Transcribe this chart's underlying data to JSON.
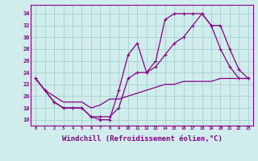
{
  "bg_color": "#d0ecec",
  "grid_color": "#a8d4d4",
  "line_color": "#880088",
  "xlabel": "Windchill (Refroidissement éolien,°C)",
  "xlabel_fontsize": 6.5,
  "ytick_values": [
    16,
    18,
    20,
    22,
    24,
    26,
    28,
    30,
    32,
    34
  ],
  "ylim": [
    15.0,
    35.5
  ],
  "xlim": [
    -0.5,
    23.5
  ],
  "line1_x": [
    0,
    1,
    2,
    3,
    4,
    5,
    6,
    7,
    8,
    9,
    10,
    11,
    12,
    13,
    14,
    15,
    16,
    17,
    18,
    19,
    20,
    21,
    22,
    23
  ],
  "line1_y": [
    23,
    21,
    19,
    18,
    18,
    18,
    16.5,
    16,
    16,
    21,
    27,
    29,
    24,
    26,
    33,
    34,
    34,
    34,
    34,
    32,
    28,
    25,
    23,
    23
  ],
  "line2_x": [
    0,
    1,
    2,
    3,
    4,
    5,
    6,
    7,
    8,
    9,
    10,
    11,
    12,
    13,
    14,
    15,
    16,
    17,
    18,
    19,
    20,
    21,
    22,
    23
  ],
  "line2_y": [
    23,
    21,
    19,
    18,
    18,
    18,
    16.5,
    16.5,
    16.5,
    18,
    23,
    24,
    24,
    25,
    27,
    29,
    30,
    32,
    34,
    32,
    32,
    28,
    24.5,
    23
  ],
  "line3_x": [
    0,
    1,
    2,
    3,
    4,
    5,
    6,
    7,
    8,
    9,
    10,
    11,
    12,
    13,
    14,
    15,
    16,
    17,
    18,
    19,
    20,
    21,
    22,
    23
  ],
  "line3_y": [
    23,
    21,
    20,
    19,
    19,
    19,
    18,
    18.5,
    19.5,
    19.5,
    20,
    20.5,
    21,
    21.5,
    22,
    22,
    22.5,
    22.5,
    22.5,
    22.5,
    23,
    23,
    23,
    23
  ]
}
